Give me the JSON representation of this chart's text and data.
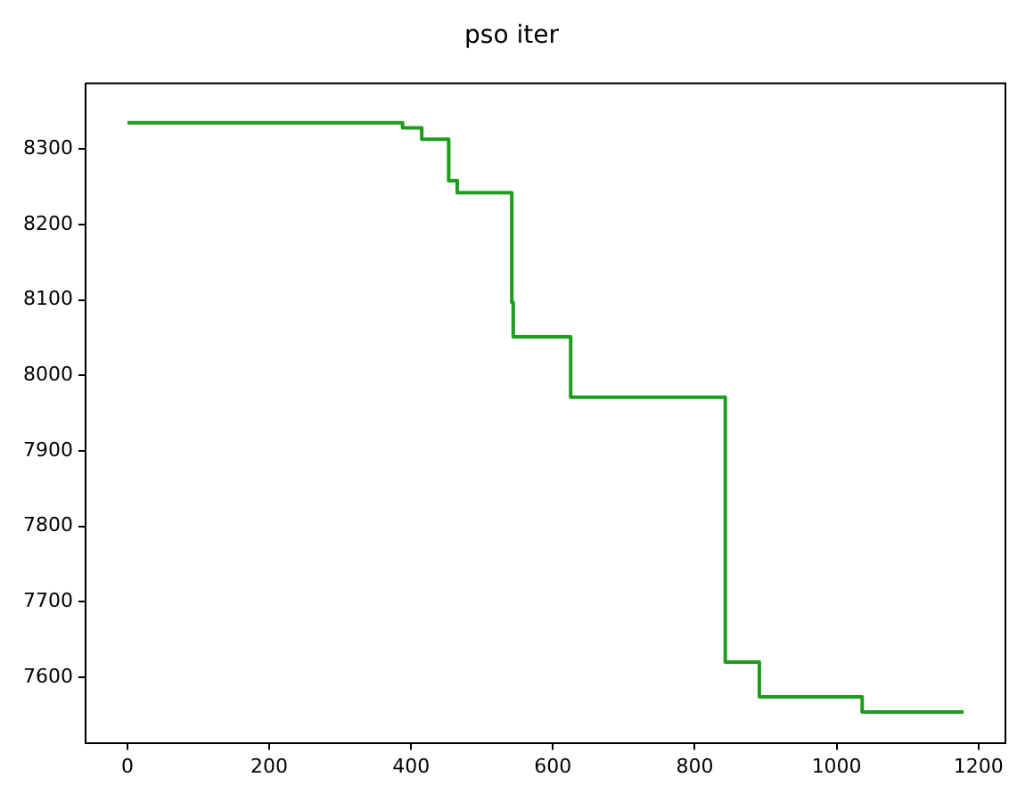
{
  "chart_data": {
    "type": "step",
    "title": "pso iter",
    "x": [
      0,
      388,
      415,
      453,
      465,
      542,
      544,
      625,
      843,
      891,
      1036,
      1179
    ],
    "series": [
      {
        "color": "#1e9c1e",
        "values": [
          8335,
          8328,
          8313,
          8258,
          8242,
          8097,
          8051,
          7971,
          7620,
          7574,
          7554,
          7554
        ]
      }
    ],
    "xlim": [
      -59,
      1238
    ],
    "xticks": [
      0,
      200,
      400,
      600,
      800,
      1000,
      1200
    ],
    "ylim": [
      7513,
      8387
    ],
    "yticks": [
      7600,
      7700,
      7800,
      7900,
      8000,
      8100,
      8200,
      8300
    ],
    "grid": false,
    "legend": false,
    "marker": "none",
    "line_style": "solid"
  }
}
